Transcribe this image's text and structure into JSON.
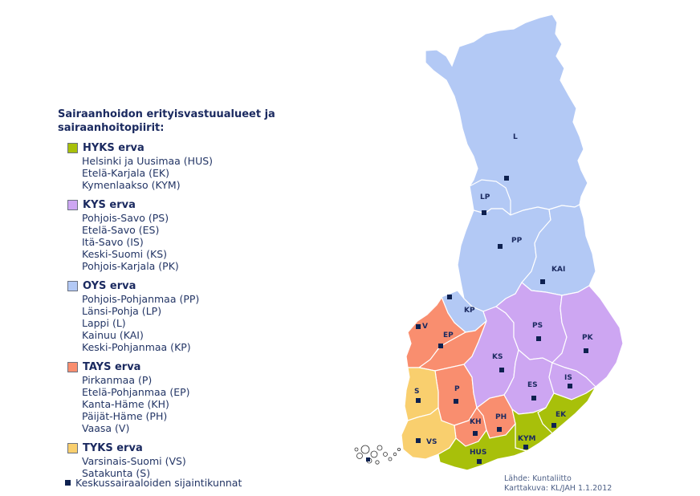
{
  "legend": {
    "title_line1": "Sairaanhoidon erityisvastuualueet ja",
    "title_line2": "sairaanhoitopiirit:",
    "groups": [
      {
        "name": "HYKS erva",
        "color": "#a8c00a",
        "items": [
          "Helsinki ja Uusimaa (HUS)",
          "Etelä-Karjala (EK)",
          "Kymenlaakso (KYM)"
        ]
      },
      {
        "name": "KYS erva",
        "color": "#cda6f2",
        "items": [
          "Pohjois-Savo (PS)",
          "Etelä-Savo (ES)",
          "Itä-Savo (IS)",
          "Keski-Suomi (KS)",
          "Pohjois-Karjala (PK)"
        ]
      },
      {
        "name": "OYS erva",
        "color": "#b3c9f5",
        "items": [
          "Pohjois-Pohjanmaa (PP)",
          "Länsi-Pohja (LP)",
          "Lappi (L)",
          "Kainuu (KAI)",
          "Keski-Pohjanmaa (KP)"
        ]
      },
      {
        "name": "TAYS erva",
        "color": "#f98e6f",
        "items": [
          "Pirkanmaa (P)",
          "Etelä-Pohjanmaa (EP)",
          "Kanta-Häme (KH)",
          "Päijät-Häme (PH)",
          "Vaasa (V)"
        ]
      },
      {
        "name": "TYKS erva",
        "color": "#f9cf6e",
        "items": [
          "Varsinais-Suomi (VS)",
          "Satakunta (S)"
        ]
      }
    ],
    "hq_label": "Keskussairaaloiden sijaintikunnat"
  },
  "credits": {
    "line1": "Lähde: Kuntaliitto",
    "line2": "Karttakuva: KL/JAH 1.1.2012"
  },
  "map": {
    "colors": {
      "hyks": "#a8c00a",
      "kys": "#cda6f2",
      "oys": "#b3c9f5",
      "tays": "#f98e6f",
      "tyks": "#f9cf6e",
      "marker": "#0e2150"
    },
    "labels": {
      "L": "L",
      "LP": "LP",
      "PP": "PP",
      "KAI": "KAI",
      "KP": "KP",
      "V": "V",
      "EP": "EP",
      "PS": "PS",
      "PK": "PK",
      "KS": "KS",
      "ES": "ES",
      "IS": "IS",
      "S": "S",
      "P": "P",
      "KH": "KH",
      "PH": "PH",
      "EK": "EK",
      "KYM": "KYM",
      "VS": "VS",
      "HUS": "HUS"
    }
  }
}
